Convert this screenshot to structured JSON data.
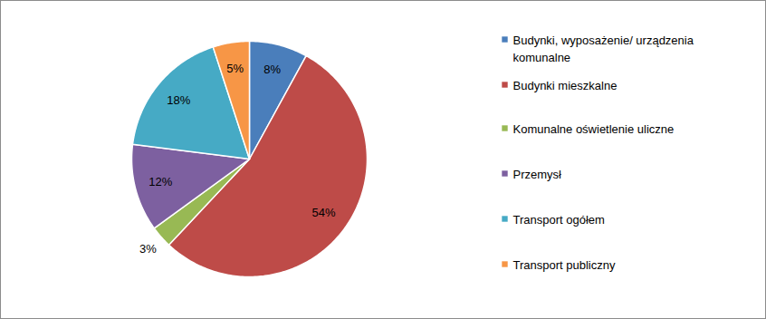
{
  "chart_data": {
    "type": "pie",
    "categories": [
      "Budynki, wyposażenie/ urządzenia komunalne",
      "Budynki mieszkalne",
      "Komunalne oświetlenie uliczne",
      "Przemysł",
      "Transport ogółem",
      "Transport publiczny"
    ],
    "values": [
      8,
      54,
      3,
      12,
      18,
      5
    ],
    "value_labels": [
      "8%",
      "54%",
      "3%",
      "12%",
      "18%",
      "5%"
    ],
    "colors": [
      "#4a7ebb",
      "#be4b48",
      "#98b954",
      "#7d60a0",
      "#46aac5",
      "#f79646"
    ],
    "data_labels": true,
    "legend": "right"
  }
}
